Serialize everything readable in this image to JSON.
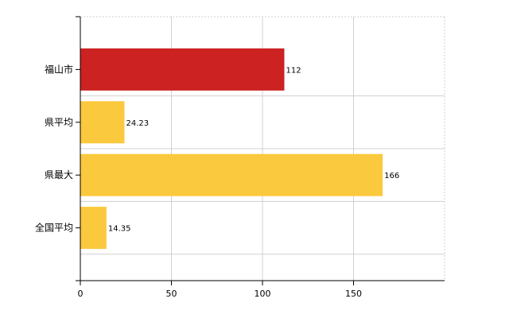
{
  "chart_data": {
    "type": "bar",
    "orientation": "horizontal",
    "categories": [
      "福山市",
      "県平均",
      "県最大",
      "全国平均"
    ],
    "values": [
      112,
      24.23,
      166,
      14.35
    ],
    "value_labels": [
      "112",
      "24.23",
      "166",
      "14.35"
    ],
    "colors": [
      "#cc2222",
      "#fbc93e",
      "#fbc93e",
      "#fbc93e"
    ],
    "x_ticks": [
      0,
      50,
      100,
      150
    ],
    "xlim": [
      0,
      200
    ],
    "grid": true,
    "title": "",
    "xlabel": "",
    "ylabel": ""
  }
}
